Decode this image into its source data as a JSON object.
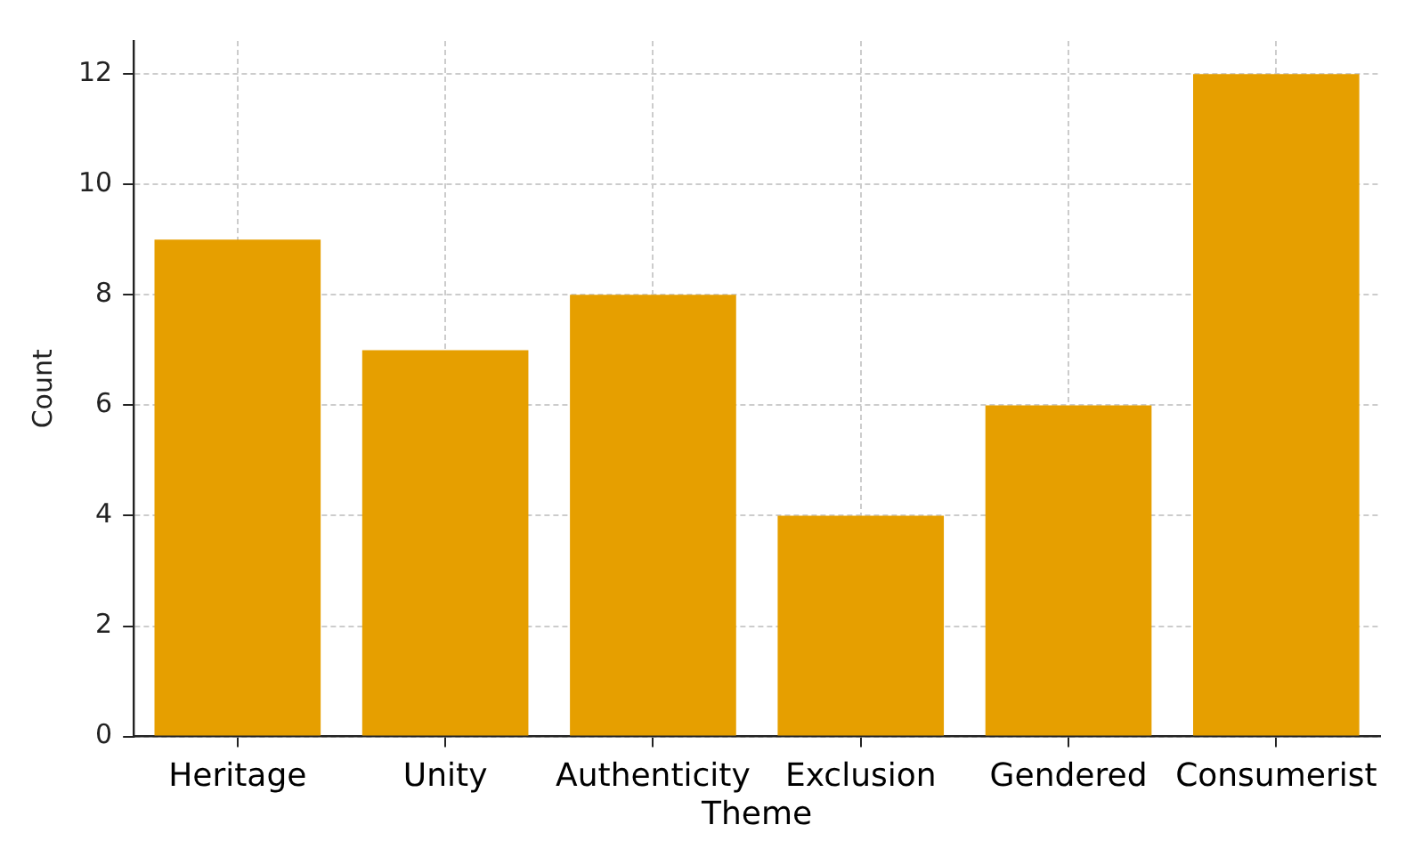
{
  "chart_data": {
    "type": "bar",
    "xlabel": "Theme",
    "ylabel": "Count",
    "categories": [
      "Heritage",
      "Unity",
      "Authenticity",
      "Exclusion",
      "Gendered",
      "Consumerist"
    ],
    "values": [
      9,
      7,
      8,
      4,
      6,
      12
    ],
    "color": "#e69f00",
    "ylim": [
      0,
      12.6
    ],
    "yticks": [
      0,
      2,
      4,
      6,
      8,
      10,
      12
    ],
    "grid": true,
    "legend": false
  }
}
